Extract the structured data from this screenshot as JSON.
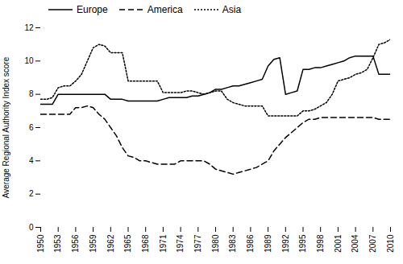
{
  "chart_data": {
    "type": "line",
    "ylabel": "Average Regional Authority Index score",
    "x": [
      1950,
      1951,
      1952,
      1953,
      1954,
      1955,
      1956,
      1957,
      1958,
      1959,
      1960,
      1961,
      1962,
      1963,
      1964,
      1965,
      1966,
      1967,
      1968,
      1969,
      1970,
      1971,
      1972,
      1973,
      1974,
      1975,
      1976,
      1977,
      1978,
      1979,
      1980,
      1981,
      1982,
      1983,
      1984,
      1985,
      1986,
      1987,
      1988,
      1989,
      1990,
      1991,
      1992,
      1993,
      1994,
      1995,
      1996,
      1997,
      1998,
      1999,
      2000,
      2001,
      2002,
      2003,
      2004,
      2005,
      2006,
      2007,
      2008,
      2009,
      2010
    ],
    "series": [
      {
        "name": "Europe",
        "color": "#000000",
        "line_style": "solid",
        "values": [
          7.4,
          7.4,
          7.4,
          8.0,
          8.0,
          8.0,
          8.0,
          8.0,
          8.0,
          8.0,
          8.0,
          8.0,
          7.7,
          7.7,
          7.7,
          7.6,
          7.6,
          7.6,
          7.6,
          7.6,
          7.6,
          7.7,
          7.8,
          7.8,
          7.8,
          7.8,
          7.9,
          7.9,
          8.0,
          8.1,
          8.3,
          8.3,
          8.4,
          8.5,
          8.5,
          8.6,
          8.7,
          8.8,
          8.9,
          9.7,
          10.1,
          10.2,
          8.0,
          8.1,
          8.2,
          9.5,
          9.5,
          9.6,
          9.6,
          9.7,
          9.8,
          9.9,
          10.0,
          10.2,
          10.3,
          10.3,
          10.3,
          10.3,
          9.2,
          9.2,
          9.2
        ]
      },
      {
        "name": "America",
        "color": "#000000",
        "line_style": "dashed",
        "values": [
          6.8,
          6.8,
          6.8,
          6.8,
          6.8,
          6.8,
          7.2,
          7.2,
          7.3,
          7.2,
          6.8,
          6.5,
          6.0,
          5.5,
          4.8,
          4.3,
          4.2,
          4.0,
          4.0,
          3.9,
          3.8,
          3.8,
          3.8,
          3.8,
          4.0,
          4.0,
          4.0,
          4.0,
          4.0,
          3.8,
          3.5,
          3.4,
          3.3,
          3.2,
          3.3,
          3.4,
          3.5,
          3.6,
          3.8,
          4.0,
          4.6,
          5.0,
          5.4,
          5.7,
          6.0,
          6.3,
          6.5,
          6.5,
          6.6,
          6.6,
          6.6,
          6.6,
          6.6,
          6.6,
          6.6,
          6.6,
          6.6,
          6.6,
          6.5,
          6.5,
          6.5
        ]
      },
      {
        "name": "Asia",
        "color": "#000000",
        "line_style": "dotted",
        "values": [
          7.7,
          7.7,
          7.8,
          8.4,
          8.5,
          8.5,
          8.8,
          9.2,
          10.0,
          10.8,
          11.0,
          10.9,
          10.5,
          10.5,
          10.5,
          8.8,
          8.8,
          8.8,
          8.8,
          8.8,
          8.8,
          8.1,
          8.1,
          8.1,
          8.1,
          8.2,
          8.2,
          8.1,
          8.0,
          8.1,
          8.2,
          8.2,
          7.7,
          7.5,
          7.4,
          7.3,
          7.3,
          7.3,
          7.3,
          6.7,
          6.7,
          6.7,
          6.7,
          6.7,
          6.7,
          7.0,
          7.0,
          7.1,
          7.3,
          7.5,
          8.0,
          8.8,
          8.9,
          9.0,
          9.2,
          9.3,
          9.5,
          10.2,
          11.0,
          11.1,
          11.3
        ]
      }
    ],
    "xlim": [
      1950,
      2010
    ],
    "xticks": [
      1950,
      1953,
      1956,
      1959,
      1962,
      1965,
      1968,
      1971,
      1974,
      1977,
      1980,
      1983,
      1986,
      1989,
      1992,
      1995,
      1998,
      2001,
      2004,
      2007,
      2010
    ],
    "ylim": [
      0,
      12
    ],
    "yticks": [
      0,
      2,
      4,
      6,
      8,
      10,
      12
    ],
    "grid": false,
    "legend": "upper left"
  }
}
